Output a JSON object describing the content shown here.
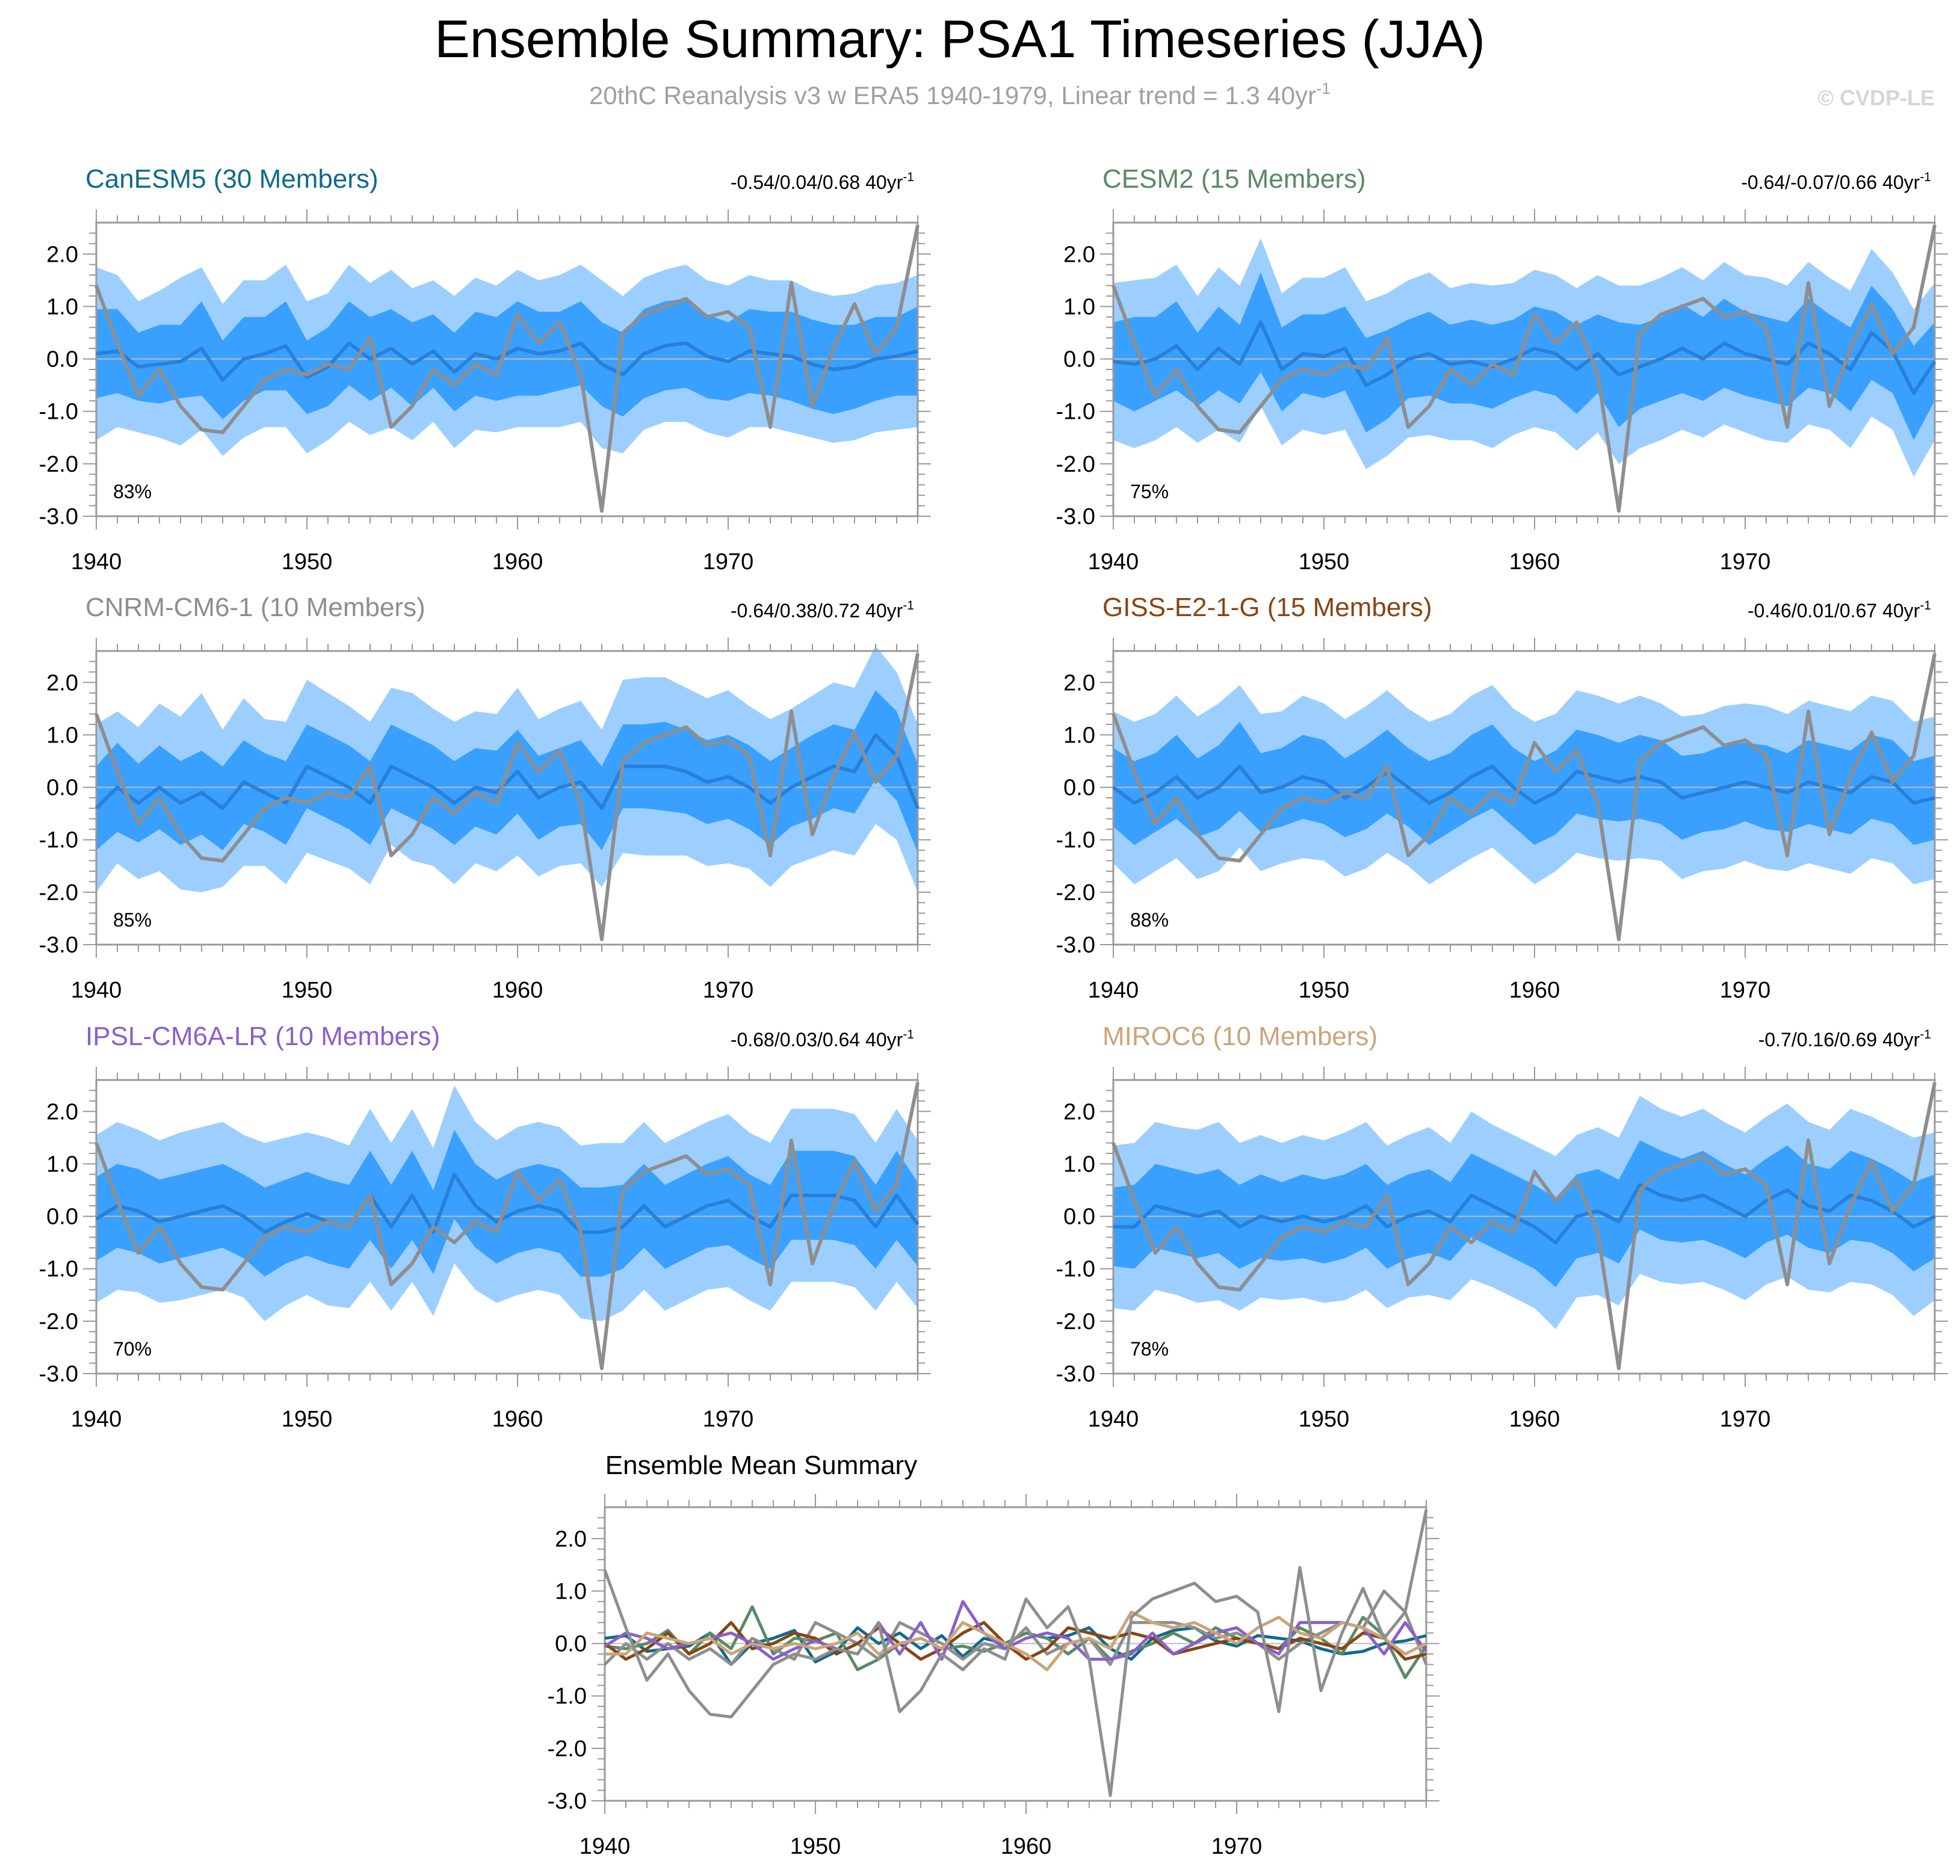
{
  "header": {
    "title": "Ensemble Summary: PSA1 Timeseries (JJA)",
    "subtitle_main": "20thC Reanalysis v3 w ERA5 1940-1979, Linear trend = 1.3 40yr",
    "subtitle_sup": "-1",
    "watermark": "© CVDP-LE"
  },
  "colors": {
    "background": "#ffffff",
    "band_outer": "#9ccfff",
    "band_inner": "#3aa0ff",
    "ens_mean": "#2880d8",
    "obs": "#8e8e8e",
    "axis": "#999999",
    "zero_line": "#bbbbbb",
    "subtitle": "#a0a0a0",
    "watermark": "#d6d6d6"
  },
  "chart_data": {
    "type": "line",
    "x": [
      1940,
      1941,
      1942,
      1943,
      1944,
      1945,
      1946,
      1947,
      1948,
      1949,
      1950,
      1951,
      1952,
      1953,
      1954,
      1955,
      1956,
      1957,
      1958,
      1959,
      1960,
      1961,
      1962,
      1963,
      1964,
      1965,
      1966,
      1967,
      1968,
      1969,
      1970,
      1971,
      1972,
      1973,
      1974,
      1975,
      1976,
      1977,
      1978,
      1979
    ],
    "xlim": [
      1940,
      1979
    ],
    "x_ticks": [
      "1940",
      "1950",
      "1960",
      "1970"
    ],
    "y_ticks": [
      "2.0",
      "1.0",
      "0.0",
      "-1.0",
      "-2.0",
      "-3.0"
    ],
    "ylim": [
      -3.0,
      2.6
    ],
    "observations": {
      "name": "20thC Reanalysis v3 w ERA5",
      "values": [
        1.4,
        0.3,
        -0.7,
        -0.2,
        -0.9,
        -1.35,
        -1.4,
        -0.9,
        -0.4,
        -0.2,
        -0.3,
        -0.1,
        -0.2,
        0.4,
        -1.3,
        -0.9,
        -0.2,
        -0.5,
        -0.1,
        -0.3,
        0.85,
        0.3,
        0.7,
        -0.3,
        -2.9,
        0.5,
        0.85,
        1.0,
        1.15,
        0.8,
        0.9,
        0.6,
        -1.3,
        1.45,
        -0.9,
        0.2,
        1.05,
        0.1,
        0.6,
        2.55
      ]
    },
    "panels": [
      {
        "model": "CanESM5 (30 Members)",
        "color": "#0f6b8c",
        "trend": "-0.54/0.04/0.68 40yr",
        "trend_sup": "-1",
        "pct": "83%",
        "mean": [
          0.1,
          0.15,
          -0.15,
          -0.1,
          -0.05,
          0.2,
          -0.4,
          0.0,
          0.1,
          0.25,
          -0.35,
          -0.15,
          0.3,
          0.0,
          0.2,
          -0.1,
          0.15,
          -0.25,
          0.1,
          0.0,
          0.2,
          0.1,
          0.15,
          0.3,
          -0.1,
          -0.3,
          0.1,
          0.25,
          0.3,
          0.05,
          -0.05,
          0.15,
          0.1,
          0.05,
          -0.1,
          -0.2,
          -0.15,
          0.0,
          0.05,
          0.15
        ],
        "inner": [
          0.85,
          0.8,
          0.65,
          0.75,
          0.7,
          0.9,
          0.75,
          0.8,
          0.7,
          0.85,
          0.7,
          0.75,
          0.8,
          0.8,
          0.75,
          0.8,
          0.7,
          0.75,
          0.8,
          0.8,
          0.9,
          0.8,
          0.75,
          0.8,
          0.8,
          0.8,
          0.85,
          0.85,
          0.85,
          0.8,
          0.75,
          0.8,
          0.8,
          0.85,
          0.85,
          0.85,
          0.8,
          0.8,
          0.75,
          0.85
        ],
        "outer": [
          1.65,
          1.45,
          1.25,
          1.4,
          1.6,
          1.55,
          1.45,
          1.5,
          1.4,
          1.55,
          1.45,
          1.4,
          1.5,
          1.45,
          1.5,
          1.45,
          1.35,
          1.45,
          1.45,
          1.4,
          1.5,
          1.4,
          1.45,
          1.5,
          1.6,
          1.5,
          1.45,
          1.45,
          1.5,
          1.45,
          1.45,
          1.45,
          1.4,
          1.45,
          1.4,
          1.4,
          1.4,
          1.4,
          1.4,
          1.45
        ]
      },
      {
        "model": "CESM2 (15 Members)",
        "color": "#5a8a63",
        "trend": "-0.64/-0.07/0.66 40yr",
        "trend_sup": "-1",
        "pct": "75%",
        "mean": [
          -0.05,
          -0.1,
          0.0,
          0.25,
          -0.2,
          0.2,
          -0.1,
          0.7,
          -0.2,
          0.1,
          0.05,
          0.2,
          -0.5,
          -0.3,
          0.0,
          0.1,
          -0.1,
          -0.05,
          -0.15,
          0.0,
          0.2,
          0.1,
          -0.2,
          0.1,
          -0.3,
          -0.15,
          0.0,
          0.2,
          0.0,
          0.3,
          0.1,
          0.0,
          -0.1,
          0.3,
          0.1,
          -0.2,
          0.5,
          0.15,
          -0.65,
          -0.05
        ],
        "inner": [
          0.75,
          0.9,
          0.8,
          0.85,
          0.7,
          0.8,
          0.75,
          0.95,
          0.8,
          0.75,
          0.8,
          0.8,
          0.9,
          0.85,
          0.75,
          0.8,
          0.75,
          0.8,
          0.8,
          0.75,
          0.8,
          0.8,
          0.85,
          0.75,
          1.0,
          0.8,
          0.8,
          0.85,
          0.8,
          0.85,
          0.8,
          0.8,
          0.8,
          0.85,
          0.75,
          0.8,
          0.9,
          0.8,
          0.9,
          0.75
        ],
        "outer": [
          1.5,
          1.6,
          1.55,
          1.55,
          1.4,
          1.55,
          1.5,
          1.6,
          1.45,
          1.45,
          1.5,
          1.55,
          1.6,
          1.55,
          1.5,
          1.55,
          1.45,
          1.5,
          1.55,
          1.45,
          1.5,
          1.5,
          1.55,
          1.5,
          1.7,
          1.55,
          1.55,
          1.55,
          1.5,
          1.55,
          1.5,
          1.55,
          1.5,
          1.55,
          1.45,
          1.5,
          1.6,
          1.5,
          1.6,
          1.5
        ]
      },
      {
        "model": "CNRM-CM6-1 (10 Members)",
        "color": "#8e8e8e",
        "trend": "-0.64/0.38/0.72 40yr",
        "trend_sup": "-1",
        "pct": "85%",
        "mean": [
          -0.4,
          0.0,
          -0.3,
          0.0,
          -0.3,
          -0.1,
          -0.4,
          0.1,
          -0.1,
          -0.3,
          0.4,
          0.2,
          0.0,
          -0.3,
          0.4,
          0.2,
          0.0,
          -0.3,
          0.0,
          -0.1,
          0.3,
          -0.2,
          0.0,
          0.1,
          -0.4,
          0.4,
          0.4,
          0.4,
          0.3,
          0.1,
          0.2,
          0.0,
          -0.3,
          0.0,
          0.2,
          0.4,
          0.3,
          1.0,
          0.6,
          -0.4
        ],
        "inner": [
          0.8,
          0.85,
          0.75,
          0.8,
          0.8,
          0.8,
          0.8,
          0.8,
          0.75,
          0.8,
          0.8,
          0.8,
          0.8,
          0.8,
          0.8,
          0.8,
          0.8,
          0.8,
          0.75,
          0.8,
          0.8,
          0.8,
          0.75,
          0.8,
          0.8,
          0.8,
          0.8,
          0.85,
          0.8,
          0.8,
          0.8,
          0.8,
          0.8,
          0.75,
          0.8,
          0.8,
          0.8,
          0.85,
          0.85,
          0.85
        ],
        "outer": [
          1.6,
          1.45,
          1.45,
          1.6,
          1.65,
          1.9,
          1.5,
          1.6,
          1.4,
          1.55,
          1.65,
          1.6,
          1.55,
          1.55,
          1.5,
          1.6,
          1.5,
          1.55,
          1.45,
          1.5,
          1.6,
          1.5,
          1.5,
          1.55,
          1.5,
          1.65,
          1.7,
          1.7,
          1.6,
          1.6,
          1.65,
          1.55,
          1.6,
          1.5,
          1.55,
          1.6,
          1.6,
          1.7,
          1.6,
          1.6
        ]
      },
      {
        "model": "GISS-E2-1-G (15 Members)",
        "color": "#874514",
        "trend": "-0.46/0.01/0.67 40yr",
        "trend_sup": "-1",
        "pct": "88%",
        "mean": [
          0.0,
          -0.3,
          -0.1,
          0.2,
          -0.2,
          0.0,
          0.4,
          -0.1,
          0.0,
          0.2,
          0.1,
          -0.2,
          0.0,
          0.3,
          0.0,
          -0.3,
          -0.1,
          0.2,
          0.4,
          0.0,
          -0.3,
          -0.1,
          0.3,
          0.2,
          0.1,
          0.2,
          0.1,
          -0.2,
          -0.1,
          0.0,
          0.1,
          0.0,
          -0.1,
          0.1,
          0.0,
          -0.1,
          0.2,
          0.1,
          -0.3,
          -0.2
        ],
        "inner": [
          0.75,
          0.8,
          0.75,
          0.8,
          0.75,
          0.8,
          0.85,
          0.75,
          0.75,
          0.8,
          0.8,
          0.75,
          0.8,
          0.8,
          0.75,
          0.8,
          0.75,
          0.8,
          0.8,
          0.75,
          0.8,
          0.8,
          0.8,
          0.8,
          0.75,
          0.8,
          0.8,
          0.8,
          0.75,
          0.8,
          0.75,
          0.8,
          0.75,
          0.8,
          0.8,
          0.8,
          0.8,
          0.8,
          0.8,
          0.8
        ],
        "outer": [
          1.45,
          1.55,
          1.5,
          1.55,
          1.55,
          1.6,
          1.55,
          1.5,
          1.45,
          1.55,
          1.5,
          1.5,
          1.55,
          1.55,
          1.5,
          1.55,
          1.5,
          1.55,
          1.55,
          1.5,
          1.55,
          1.5,
          1.55,
          1.55,
          1.5,
          1.55,
          1.5,
          1.55,
          1.5,
          1.55,
          1.5,
          1.55,
          1.5,
          1.55,
          1.55,
          1.55,
          1.55,
          1.55,
          1.55,
          1.55
        ]
      },
      {
        "model": "IPSL-CM6A-LR (10 Members)",
        "color": "#8a5fcb",
        "trend": "-0.68/0.03/0.64 40yr",
        "trend_sup": "-1",
        "pct": "70%",
        "mean": [
          -0.05,
          0.2,
          0.1,
          -0.1,
          0.0,
          0.1,
          0.2,
          0.0,
          -0.3,
          -0.1,
          0.05,
          -0.1,
          -0.2,
          0.4,
          -0.2,
          0.4,
          -0.3,
          0.8,
          0.2,
          -0.1,
          0.1,
          0.2,
          0.1,
          -0.3,
          -0.3,
          -0.2,
          0.2,
          -0.2,
          0.0,
          0.2,
          0.3,
          0.0,
          -0.2,
          0.4,
          0.4,
          0.4,
          0.3,
          -0.2,
          0.4,
          -0.15
        ],
        "inner": [
          0.8,
          0.8,
          0.8,
          0.8,
          0.8,
          0.8,
          0.8,
          0.8,
          0.85,
          0.8,
          0.8,
          0.8,
          0.8,
          0.85,
          0.8,
          0.85,
          0.8,
          0.85,
          0.8,
          0.8,
          0.8,
          0.8,
          0.8,
          0.85,
          0.85,
          0.8,
          0.8,
          0.8,
          0.8,
          0.8,
          0.85,
          0.8,
          0.8,
          0.85,
          0.85,
          0.85,
          0.85,
          0.8,
          0.85,
          0.8
        ],
        "outer": [
          1.6,
          1.6,
          1.55,
          1.55,
          1.6,
          1.6,
          1.6,
          1.55,
          1.7,
          1.6,
          1.55,
          1.6,
          1.55,
          1.65,
          1.6,
          1.65,
          1.6,
          1.7,
          1.6,
          1.55,
          1.6,
          1.6,
          1.6,
          1.65,
          1.7,
          1.6,
          1.6,
          1.6,
          1.6,
          1.6,
          1.65,
          1.6,
          1.6,
          1.65,
          1.65,
          1.65,
          1.65,
          1.6,
          1.65,
          1.6
        ]
      },
      {
        "model": "MIROC6 (10 Members)",
        "color": "#c9a57a",
        "trend": "-0.7/0.16/0.69 40yr",
        "trend_sup": "-1",
        "pct": "78%",
        "mean": [
          -0.2,
          -0.2,
          0.2,
          0.1,
          0.0,
          0.1,
          -0.2,
          0.0,
          -0.1,
          0.0,
          -0.1,
          0.0,
          0.2,
          -0.2,
          0.0,
          0.1,
          -0.1,
          0.4,
          0.2,
          0.0,
          -0.2,
          -0.5,
          0.0,
          0.1,
          -0.1,
          0.6,
          0.4,
          0.3,
          0.4,
          0.2,
          0.0,
          0.3,
          0.5,
          0.2,
          0.1,
          0.4,
          0.3,
          0.1,
          -0.2,
          0.0
        ],
        "inner": [
          0.75,
          0.8,
          0.8,
          0.8,
          0.8,
          0.8,
          0.8,
          0.8,
          0.75,
          0.8,
          0.8,
          0.8,
          0.8,
          0.8,
          0.8,
          0.8,
          0.75,
          0.8,
          0.8,
          0.8,
          0.8,
          0.85,
          0.8,
          0.8,
          0.8,
          0.85,
          0.85,
          0.8,
          0.85,
          0.8,
          0.8,
          0.8,
          0.85,
          0.8,
          0.8,
          0.85,
          0.8,
          0.8,
          0.85,
          0.8
        ],
        "outer": [
          1.55,
          1.6,
          1.6,
          1.6,
          1.65,
          1.7,
          1.6,
          1.55,
          1.5,
          1.55,
          1.55,
          1.6,
          1.6,
          1.55,
          1.55,
          1.6,
          1.5,
          1.6,
          1.55,
          1.55,
          1.55,
          1.65,
          1.55,
          1.6,
          1.6,
          1.7,
          1.65,
          1.6,
          1.65,
          1.6,
          1.6,
          1.6,
          1.65,
          1.6,
          1.55,
          1.65,
          1.6,
          1.6,
          1.7,
          1.6
        ]
      }
    ],
    "summary": {
      "title": "Ensemble Mean Summary",
      "lines": [
        "observations",
        "CanESM5 (30 Members)",
        "CESM2 (15 Members)",
        "CNRM-CM6-1 (10 Members)",
        "GISS-E2-1-G (15 Members)",
        "IPSL-CM6A-LR (10 Members)",
        "MIROC6 (10 Members)"
      ]
    }
  }
}
